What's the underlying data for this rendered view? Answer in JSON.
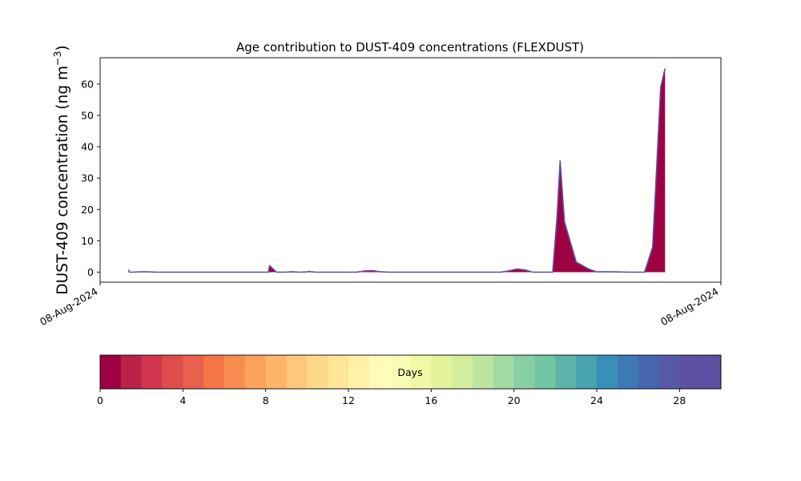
{
  "chart_data": {
    "type": "area",
    "title": "Age contribution to DUST-409 concentrations (FLEXDUST)",
    "ylabel_main": "DUST-409 concentration (ng m",
    "ylabel_sup": "−3",
    "ylabel_end": ")",
    "xlabel": "",
    "x_tick_labels": [
      "08-Aug-2024",
      "08-Aug-2024"
    ],
    "y_ticks": [
      0,
      10,
      20,
      30,
      40,
      50,
      60
    ],
    "ylim": [
      -3.2,
      68.4
    ],
    "xlim": [
      0,
      1
    ],
    "grid": false,
    "legend": "none",
    "series": [
      {
        "name": "",
        "color": "#9e0142",
        "outline_color": "#5e4fa2",
        "x": [
          0.046,
          0.047,
          0.052,
          0.065,
          0.077,
          0.09,
          0.103,
          0.129,
          0.155,
          0.181,
          0.207,
          0.232,
          0.258,
          0.271,
          0.273,
          0.284,
          0.297,
          0.31,
          0.323,
          0.335,
          0.336,
          0.34,
          0.348,
          0.361,
          0.374,
          0.387,
          0.4,
          0.413,
          0.426,
          0.439,
          0.452,
          0.465,
          0.49,
          0.516,
          0.542,
          0.568,
          0.594,
          0.619,
          0.645,
          0.658,
          0.671,
          0.684,
          0.697,
          0.729,
          0.736,
          0.741,
          0.748,
          0.767,
          0.787,
          0.8,
          0.826,
          0.852,
          0.877,
          0.89,
          0.903,
          0.91
        ],
        "values": [
          0.8,
          0.0,
          0.0,
          0.1,
          0.1,
          0.0,
          0.0,
          0.0,
          0.0,
          0.0,
          0.0,
          0.0,
          0.0,
          0.0,
          2.1,
          0.0,
          0.0,
          0.1,
          0.0,
          0.1,
          0.3,
          0.1,
          0.0,
          0.0,
          0.0,
          0.0,
          0.0,
          0.0,
          0.4,
          0.5,
          0.1,
          0.0,
          0.0,
          0.0,
          0.0,
          0.0,
          0.0,
          0.0,
          0.0,
          0.4,
          1.0,
          0.7,
          0.0,
          0.0,
          17.5,
          35.5,
          16.0,
          3.2,
          1.0,
          0.1,
          0.1,
          0.0,
          0.0,
          8.0,
          59.0,
          65.0
        ]
      }
    ],
    "colorbar": {
      "label": "Days",
      "min": 0,
      "max": 30,
      "ticks": [
        0,
        4,
        8,
        12,
        16,
        20,
        24,
        28
      ],
      "colors": [
        "#9e0142",
        "#bb2249",
        "#d0374e",
        "#de4d4b",
        "#e9604e",
        "#f57748",
        "#f88d52",
        "#fba35c",
        "#fdb668",
        "#fec87a",
        "#fed989",
        "#fee598",
        "#fff1a8",
        "#fffbb8",
        "#f9fcb5",
        "#f0f9a6",
        "#e3f49b",
        "#d3ed9c",
        "#bde5a0",
        "#a4daa4",
        "#89cfa5",
        "#73c6a4",
        "#5db5a9",
        "#4aa3b1",
        "#3a8fb8",
        "#3d7ab5",
        "#4667af",
        "#5659a6",
        "#5e4fa2",
        "#5e4fa2"
      ]
    }
  }
}
